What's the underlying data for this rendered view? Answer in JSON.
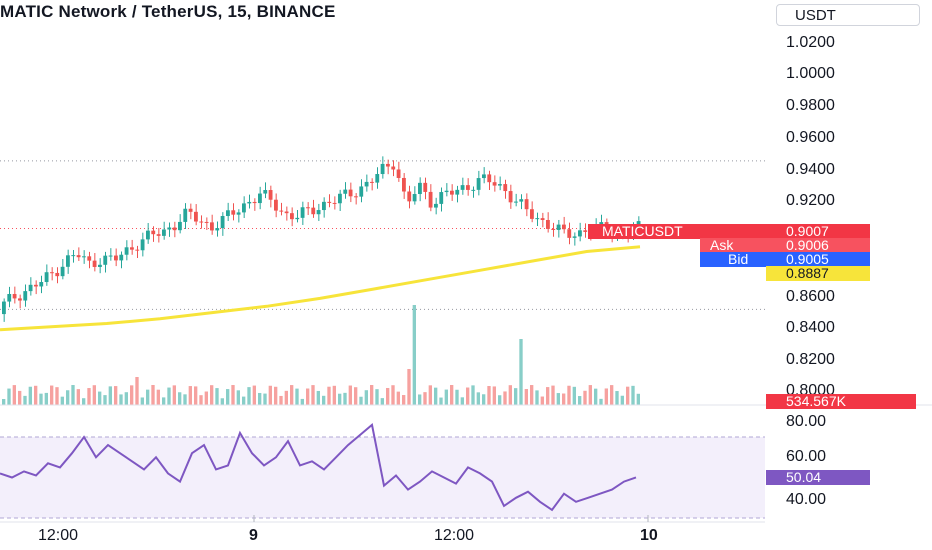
{
  "header": {
    "title": "MATIC Network / TetherUS, 15, BINANCE",
    "currency_button": "USDT"
  },
  "price_axis": {
    "ticks": [
      "1.0200",
      "1.0000",
      "0.9800",
      "0.9600",
      "0.9400",
      "0.9200",
      "0.8600",
      "0.8400",
      "0.8200",
      "0.8000"
    ]
  },
  "tags": {
    "symbol_label": "MATICUSDT",
    "last_price": "0.9007",
    "ask_label": "Ask",
    "ask_price": "0.9006",
    "bid_label": "Bid",
    "bid_price": "0.9005",
    "ma_value": "0.8887",
    "volume_value": "534.567K",
    "rsi_value": "50.04"
  },
  "rsi_axis": {
    "ticks": [
      "80.00",
      "60.00",
      "40.00"
    ]
  },
  "time_axis": {
    "labels": [
      "12:00",
      "9",
      "12:00",
      "10"
    ]
  },
  "colors": {
    "up": "#26a69a",
    "down": "#ef5350",
    "ma": "#f7e43a",
    "rsi": "#7e57c2",
    "rsi_band": "#f3effb",
    "bid": "#2962ff",
    "tag_red": "#f23645"
  },
  "chart_data": {
    "type": "candlestick",
    "symbol": "MATICUSDT",
    "interval": "15",
    "exchange": "BINANCE",
    "y_range": [
      0.79,
      1.03
    ],
    "ohlc_close_path": [
      0.852,
      0.858,
      0.862,
      0.866,
      0.872,
      0.88,
      0.884,
      0.878,
      0.882,
      0.88,
      0.886,
      0.892,
      0.896,
      0.898,
      0.904,
      0.91,
      0.906,
      0.902,
      0.906,
      0.912,
      0.918,
      0.922,
      0.918,
      0.91,
      0.908,
      0.912,
      0.916,
      0.918,
      0.922,
      0.926,
      0.93,
      0.938,
      0.944,
      0.915,
      0.928,
      0.918,
      0.922,
      0.924,
      0.928,
      0.932,
      0.93,
      0.926,
      0.918,
      0.91,
      0.906,
      0.902,
      0.896,
      0.898,
      0.901,
      0.9,
      0.899,
      0.898,
      0.9007
    ],
    "moving_average": {
      "label": "0.8887",
      "values": [
        0.836,
        0.838,
        0.84,
        0.843,
        0.847,
        0.851,
        0.856,
        0.862,
        0.868,
        0.874,
        0.88,
        0.886,
        0.889
      ]
    },
    "horizontal_lines": [
      0.944,
      0.9007,
      0.849
    ],
    "volume_last": "534.567K",
    "rsi": {
      "last": 50.04,
      "band": [
        30,
        70
      ],
      "values": [
        52,
        50,
        53,
        51,
        57,
        55,
        62,
        70,
        60,
        66,
        62,
        58,
        54,
        60,
        52,
        48,
        62,
        66,
        54,
        56,
        72,
        62,
        56,
        60,
        68,
        56,
        58,
        54,
        60,
        66,
        71,
        76,
        46,
        51,
        44,
        48,
        53,
        50,
        47,
        55,
        52,
        48,
        36,
        40,
        43,
        38,
        34,
        42,
        38,
        40,
        42,
        44,
        48,
        50.04
      ]
    },
    "rsi_ticks": [
      "80.00",
      "60.00",
      "40.00"
    ],
    "x_labels": [
      "12:00",
      "9",
      "12:00",
      "10"
    ]
  }
}
